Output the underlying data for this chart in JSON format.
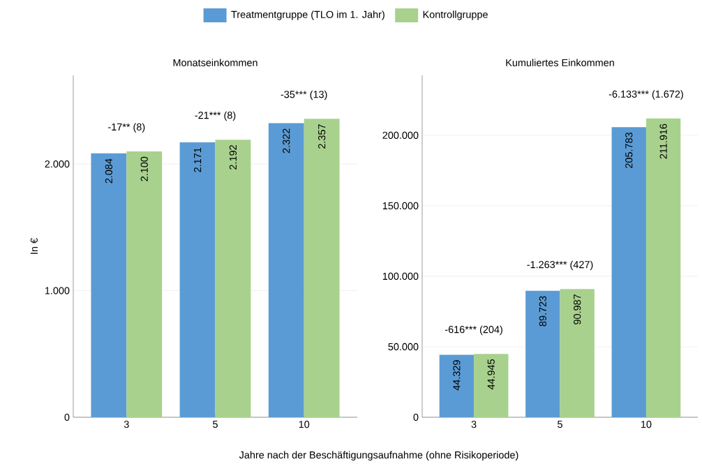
{
  "chart_data": [
    {
      "type": "bar",
      "title": "Monatseinkommen",
      "xlabel": "Jahre nach der Beschäftigungsaufnahme (ohne Risikoperiode)",
      "ylabel": "In €",
      "categories": [
        "3",
        "5",
        "10"
      ],
      "series": [
        {
          "name": "Treatmentgruppe (TLO im 1. Jahr)",
          "color": "#5b9bd5",
          "values": [
            2084,
            2171,
            2322
          ],
          "value_labels": [
            "2.084",
            "2.171",
            "2.322"
          ]
        },
        {
          "name": "Kontrollgruppe",
          "color": "#a9d18e",
          "values": [
            2100,
            2192,
            2357
          ],
          "value_labels": [
            "2.100",
            "2.192",
            "2.357"
          ]
        }
      ],
      "ylim": [
        0,
        2700
      ],
      "yticks": [
        0,
        {
          "value": 1000,
          "label": "1.000"
        },
        {
          "value": 2000,
          "label": "2.000"
        }
      ],
      "grid": "y",
      "legend": "top",
      "annotations": [
        "-17** (8)",
        "-21*** (8)",
        "-35*** (13)"
      ]
    },
    {
      "type": "bar",
      "title": "Kumuliertes Einkommen",
      "categories": [
        "3",
        "5",
        "10"
      ],
      "series": [
        {
          "color": "#5b9bd5",
          "values": [
            44329,
            89723,
            205783
          ],
          "value_labels": [
            "44.329",
            "89.723",
            "205.783"
          ]
        },
        {
          "color": "#a9d18e",
          "values": [
            44945,
            90987,
            211916
          ],
          "value_labels": [
            "44.945",
            "90.987",
            "211.916"
          ]
        }
      ],
      "ylim": [
        0,
        242500
      ],
      "yticks": [
        0,
        {
          "value": 50000,
          "label": "50.000"
        },
        {
          "value": 100000,
          "label": "100.000"
        },
        {
          "value": 150000,
          "label": "150.000"
        },
        {
          "value": 200000,
          "label": "200.000"
        }
      ],
      "grid": "y",
      "annotations": [
        "-616*** (204)",
        "-1.263*** (427)",
        "-6.133*** (1.672)"
      ]
    }
  ]
}
